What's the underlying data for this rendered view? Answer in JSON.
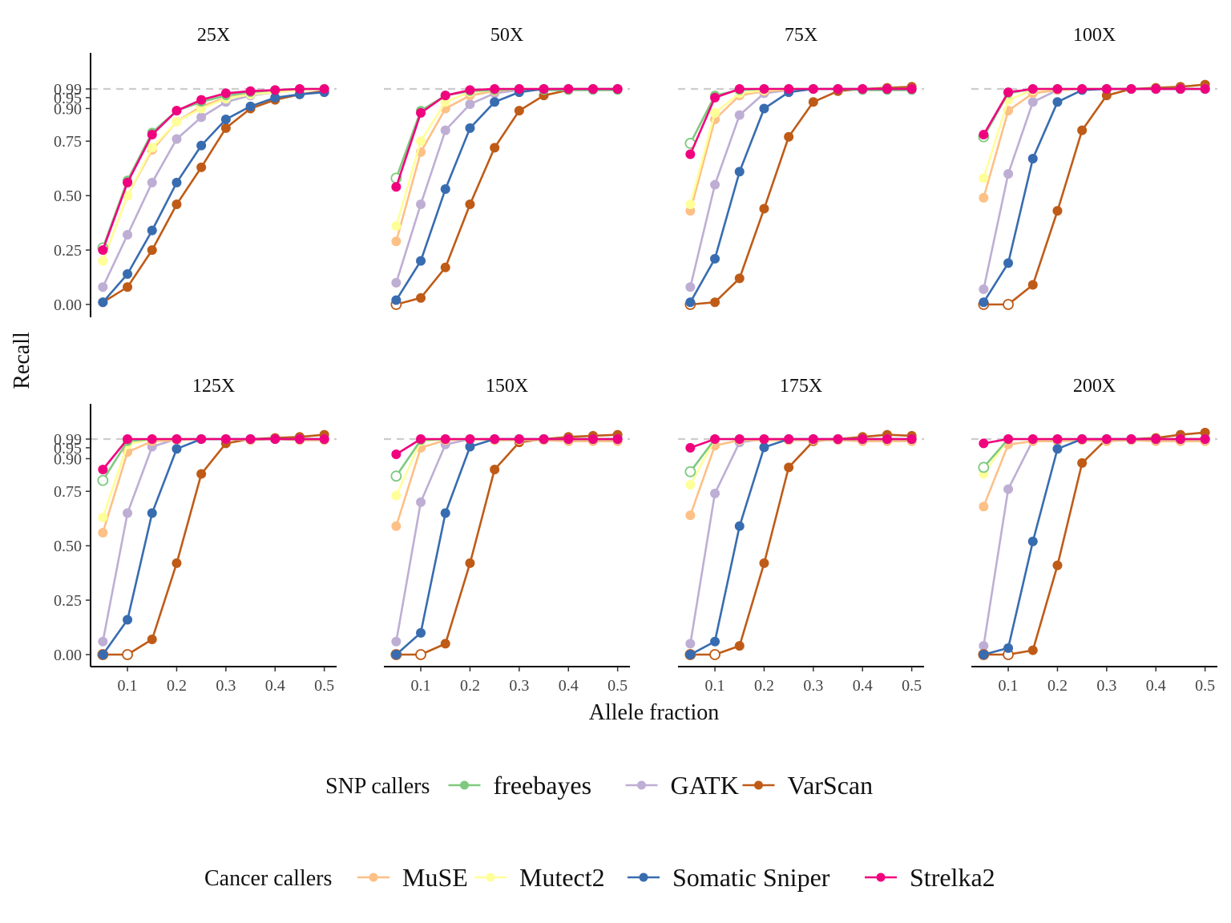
{
  "chart_data": {
    "type": "line",
    "xlabel": "Allele fraction",
    "ylabel": "Recall",
    "x": [
      0.05,
      0.1,
      0.15,
      0.2,
      0.25,
      0.3,
      0.35,
      0.4,
      0.45,
      0.5
    ],
    "xticks": [
      0.1,
      0.2,
      0.3,
      0.4,
      0.5
    ],
    "xtick_labels": [
      "0.1",
      "0.2",
      "0.3",
      "0.4",
      "0.5"
    ],
    "yticks": [
      0,
      0.25,
      0.5,
      0.75,
      0.9,
      0.95,
      0.99
    ],
    "ytick_labels": [
      "0.00",
      "0.25",
      "0.50",
      "0.75",
      "0.90",
      "0.95",
      "0.99"
    ],
    "ylim": [
      -0.04,
      1.03
    ],
    "reference_line": 0.99,
    "grid": false,
    "legends": [
      {
        "title": "SNP callers",
        "entries": [
          {
            "name": "freebayes",
            "color": "#7fc97f"
          },
          {
            "name": "GATK",
            "color": "#beaed4"
          },
          {
            "name": "VarScan",
            "color": "#bf5b17"
          }
        ]
      },
      {
        "title": "Cancer callers",
        "entries": [
          {
            "name": "MuSE",
            "color": "#fdc086"
          },
          {
            "name": "Mutect2",
            "color": "#ffff99"
          },
          {
            "name": "Somatic Sniper",
            "color": "#386cb0"
          },
          {
            "name": "Strelka2",
            "color": "#f0027f"
          }
        ]
      }
    ],
    "colors": {
      "freebayes": "#7fc97f",
      "GATK": "#beaed4",
      "VarScan": "#bf5b17",
      "MuSE": "#fdc086",
      "Mutect2": "#ffff99",
      "Somatic Sniper": "#386cb0",
      "Strelka2": "#f0027f"
    },
    "panels": [
      {
        "title": "25X",
        "series": [
          {
            "name": "freebayes",
            "values": [
              0.26,
              0.57,
              0.79,
              0.89,
              0.93,
              0.96,
              0.975,
              0.985,
              0.99,
              0.99
            ]
          },
          {
            "name": "GATK",
            "values": [
              0.08,
              0.32,
              0.56,
              0.76,
              0.86,
              0.93,
              0.96,
              0.975,
              0.985,
              0.99
            ]
          },
          {
            "name": "VarScan",
            "values": [
              0.01,
              0.08,
              0.25,
              0.46,
              0.63,
              0.81,
              0.9,
              0.94,
              0.965,
              0.98
            ]
          },
          {
            "name": "MuSE",
            "values": [
              0.2,
              0.5,
              0.71,
              0.84,
              0.91,
              0.95,
              0.965,
              0.975,
              0.985,
              0.99
            ]
          },
          {
            "name": "Mutect2",
            "values": [
              0.2,
              0.5,
              0.72,
              0.84,
              0.9,
              0.945,
              0.965,
              0.975,
              0.985,
              0.99
            ]
          },
          {
            "name": "Somatic Sniper",
            "values": [
              0.01,
              0.14,
              0.34,
              0.56,
              0.73,
              0.85,
              0.91,
              0.95,
              0.965,
              0.975
            ]
          },
          {
            "name": "Strelka2",
            "values": [
              0.25,
              0.56,
              0.78,
              0.89,
              0.94,
              0.97,
              0.98,
              0.985,
              0.99,
              0.99
            ]
          }
        ]
      },
      {
        "title": "50X",
        "series": [
          {
            "name": "freebayes",
            "values": [
              0.58,
              0.89,
              0.96,
              0.98,
              0.985,
              0.99,
              0.985,
              0.985,
              0.985,
              0.985
            ]
          },
          {
            "name": "GATK",
            "values": [
              0.1,
              0.46,
              0.8,
              0.92,
              0.97,
              0.985,
              0.99,
              0.99,
              0.99,
              0.99
            ]
          },
          {
            "name": "VarScan",
            "values": [
              0.0,
              0.03,
              0.17,
              0.46,
              0.72,
              0.89,
              0.96,
              0.985,
              0.99,
              0.99
            ]
          },
          {
            "name": "MuSE",
            "values": [
              0.29,
              0.7,
              0.9,
              0.96,
              0.98,
              0.99,
              0.99,
              0.99,
              0.99,
              0.99
            ]
          },
          {
            "name": "Mutect2",
            "values": [
              0.36,
              0.75,
              0.93,
              0.975,
              0.985,
              0.99,
              0.99,
              0.99,
              0.99,
              0.99
            ]
          },
          {
            "name": "Somatic Sniper",
            "values": [
              0.02,
              0.2,
              0.53,
              0.81,
              0.93,
              0.975,
              0.99,
              0.99,
              0.99,
              0.99
            ]
          },
          {
            "name": "Strelka2",
            "values": [
              0.54,
              0.88,
              0.96,
              0.985,
              0.99,
              0.99,
              0.99,
              0.99,
              0.99,
              0.99
            ]
          }
        ]
      },
      {
        "title": "75X",
        "series": [
          {
            "name": "freebayes",
            "values": [
              0.74,
              0.96,
              0.985,
              0.99,
              0.99,
              0.99,
              0.99,
              0.985,
              0.985,
              0.985
            ]
          },
          {
            "name": "GATK",
            "values": [
              0.08,
              0.55,
              0.87,
              0.97,
              0.985,
              0.99,
              0.99,
              0.99,
              0.99,
              0.99
            ]
          },
          {
            "name": "VarScan",
            "values": [
              0.0,
              0.01,
              0.12,
              0.44,
              0.77,
              0.93,
              0.98,
              0.99,
              0.995,
              1.0
            ]
          },
          {
            "name": "MuSE",
            "values": [
              0.43,
              0.85,
              0.96,
              0.98,
              0.985,
              0.99,
              0.99,
              0.99,
              0.99,
              0.99
            ]
          },
          {
            "name": "Mutect2",
            "values": [
              0.46,
              0.88,
              0.97,
              0.985,
              0.99,
              0.99,
              0.99,
              0.99,
              0.99,
              0.99
            ]
          },
          {
            "name": "Somatic Sniper",
            "values": [
              0.01,
              0.21,
              0.61,
              0.9,
              0.975,
              0.99,
              0.99,
              0.99,
              0.99,
              0.99
            ]
          },
          {
            "name": "Strelka2",
            "values": [
              0.69,
              0.95,
              0.99,
              0.99,
              0.99,
              0.99,
              0.99,
              0.99,
              0.99,
              0.99
            ]
          }
        ]
      },
      {
        "title": "100X",
        "series": [
          {
            "name": "freebayes",
            "values": [
              0.77,
              0.97,
              0.99,
              0.99,
              0.99,
              0.99,
              0.99,
              0.99,
              0.99,
              0.99
            ]
          },
          {
            "name": "GATK",
            "values": [
              0.07,
              0.6,
              0.93,
              0.985,
              0.99,
              0.99,
              0.99,
              0.99,
              0.99,
              0.99
            ]
          },
          {
            "name": "VarScan",
            "values": [
              0.0,
              0.0,
              0.09,
              0.43,
              0.8,
              0.96,
              0.99,
              0.995,
              1.0,
              1.01
            ]
          },
          {
            "name": "MuSE",
            "values": [
              0.49,
              0.89,
              0.97,
              0.985,
              0.99,
              0.99,
              0.99,
              0.99,
              0.99,
              0.99
            ]
          },
          {
            "name": "Mutect2",
            "values": [
              0.58,
              0.94,
              0.985,
              0.99,
              0.99,
              0.99,
              0.99,
              0.99,
              0.99,
              0.99
            ]
          },
          {
            "name": "Somatic Sniper",
            "values": [
              0.01,
              0.19,
              0.67,
              0.93,
              0.985,
              0.99,
              0.99,
              0.99,
              0.99,
              0.99
            ]
          },
          {
            "name": "Strelka2",
            "values": [
              0.78,
              0.975,
              0.99,
              0.99,
              0.99,
              0.99,
              0.99,
              0.99,
              0.99,
              0.99
            ]
          }
        ]
      },
      {
        "title": "125X",
        "series": [
          {
            "name": "freebayes",
            "values": [
              0.8,
              0.98,
              0.99,
              0.99,
              0.99,
              0.99,
              0.99,
              0.99,
              0.99,
              0.99
            ]
          },
          {
            "name": "GATK",
            "values": [
              0.06,
              0.65,
              0.955,
              0.99,
              0.99,
              0.99,
              0.99,
              0.99,
              0.99,
              0.99
            ]
          },
          {
            "name": "VarScan",
            "values": [
              0.0,
              0.0,
              0.07,
              0.42,
              0.83,
              0.97,
              0.99,
              0.995,
              1.0,
              1.01
            ]
          },
          {
            "name": "MuSE",
            "values": [
              0.56,
              0.93,
              0.98,
              0.985,
              0.99,
              0.99,
              0.985,
              0.99,
              0.985,
              0.985
            ]
          },
          {
            "name": "Mutect2",
            "values": [
              0.63,
              0.965,
              0.99,
              0.99,
              0.99,
              0.99,
              0.99,
              0.99,
              0.99,
              0.99
            ]
          },
          {
            "name": "Somatic Sniper",
            "values": [
              0.0,
              0.16,
              0.65,
              0.945,
              0.99,
              0.99,
              0.99,
              0.99,
              0.99,
              0.99
            ]
          },
          {
            "name": "Strelka2",
            "values": [
              0.85,
              0.99,
              0.99,
              0.99,
              0.99,
              0.99,
              0.99,
              0.99,
              0.99,
              0.99
            ]
          }
        ]
      },
      {
        "title": "150X",
        "series": [
          {
            "name": "freebayes",
            "values": [
              0.82,
              0.985,
              0.99,
              0.99,
              0.99,
              0.99,
              0.99,
              0.99,
              0.99,
              0.99
            ]
          },
          {
            "name": "GATK",
            "values": [
              0.06,
              0.7,
              0.965,
              0.99,
              0.99,
              0.99,
              0.99,
              0.99,
              0.99,
              0.99
            ]
          },
          {
            "name": "VarScan",
            "values": [
              0.0,
              0.0,
              0.05,
              0.42,
              0.85,
              0.975,
              0.99,
              1.0,
              1.005,
              1.01
            ]
          },
          {
            "name": "MuSE",
            "values": [
              0.59,
              0.95,
              0.985,
              0.99,
              0.985,
              0.985,
              0.985,
              0.98,
              0.98,
              0.98
            ]
          },
          {
            "name": "Mutect2",
            "values": [
              0.73,
              0.98,
              0.99,
              0.99,
              0.99,
              0.99,
              0.99,
              0.99,
              0.99,
              0.99
            ]
          },
          {
            "name": "Somatic Sniper",
            "values": [
              0.0,
              0.1,
              0.65,
              0.955,
              0.99,
              0.99,
              0.99,
              0.99,
              0.99,
              0.99
            ]
          },
          {
            "name": "Strelka2",
            "values": [
              0.92,
              0.99,
              0.99,
              0.99,
              0.99,
              0.99,
              0.99,
              0.99,
              0.99,
              0.99
            ]
          }
        ]
      },
      {
        "title": "175X",
        "series": [
          {
            "name": "freebayes",
            "values": [
              0.84,
              0.99,
              0.99,
              0.99,
              0.99,
              0.99,
              0.99,
              0.99,
              0.99,
              0.99
            ]
          },
          {
            "name": "GATK",
            "values": [
              0.05,
              0.74,
              0.975,
              0.99,
              0.99,
              0.99,
              0.99,
              0.99,
              0.99,
              0.99
            ]
          },
          {
            "name": "VarScan",
            "values": [
              0.0,
              0.0,
              0.04,
              0.42,
              0.86,
              0.98,
              0.99,
              1.0,
              1.01,
              1.005
            ]
          },
          {
            "name": "MuSE",
            "values": [
              0.64,
              0.96,
              0.985,
              0.985,
              0.985,
              0.985,
              0.985,
              0.98,
              0.98,
              0.98
            ]
          },
          {
            "name": "Mutect2",
            "values": [
              0.78,
              0.99,
              0.99,
              0.99,
              0.99,
              0.99,
              0.99,
              0.99,
              0.99,
              0.99
            ]
          },
          {
            "name": "Somatic Sniper",
            "values": [
              0.0,
              0.06,
              0.59,
              0.952,
              0.99,
              0.99,
              0.99,
              0.99,
              0.99,
              0.99
            ]
          },
          {
            "name": "Strelka2",
            "values": [
              0.95,
              0.99,
              0.99,
              0.99,
              0.99,
              0.99,
              0.99,
              0.99,
              0.99,
              0.99
            ]
          }
        ]
      },
      {
        "title": "200X",
        "series": [
          {
            "name": "freebayes",
            "values": [
              0.86,
              0.99,
              0.99,
              0.99,
              0.99,
              0.99,
              0.99,
              0.99,
              0.99,
              0.99
            ]
          },
          {
            "name": "GATK",
            "values": [
              0.04,
              0.76,
              0.985,
              0.99,
              0.99,
              0.99,
              0.99,
              0.99,
              0.99,
              0.99
            ]
          },
          {
            "name": "VarScan",
            "values": [
              0.0,
              0.0,
              0.02,
              0.41,
              0.88,
              0.99,
              0.99,
              0.995,
              1.01,
              1.02
            ]
          },
          {
            "name": "MuSE",
            "values": [
              0.68,
              0.965,
              0.98,
              0.98,
              0.985,
              0.98,
              0.985,
              0.98,
              0.98,
              0.98
            ]
          },
          {
            "name": "Mutect2",
            "values": [
              0.83,
              0.99,
              0.99,
              0.99,
              0.99,
              0.99,
              0.99,
              0.99,
              0.99,
              0.99
            ]
          },
          {
            "name": "Somatic Sniper",
            "values": [
              0.0,
              0.03,
              0.52,
              0.945,
              0.99,
              0.99,
              0.99,
              0.99,
              0.99,
              0.99
            ]
          },
          {
            "name": "Strelka2",
            "values": [
              0.97,
              0.99,
              0.99,
              0.99,
              0.99,
              0.99,
              0.99,
              0.99,
              0.99,
              0.99
            ]
          }
        ]
      }
    ],
    "notes_open_points": [
      {
        "series": "freebayes",
        "description": "open circles (hollow markers) at low allele fraction"
      },
      {
        "series": "VarScan",
        "description": "open circles where recall is 0"
      }
    ]
  }
}
